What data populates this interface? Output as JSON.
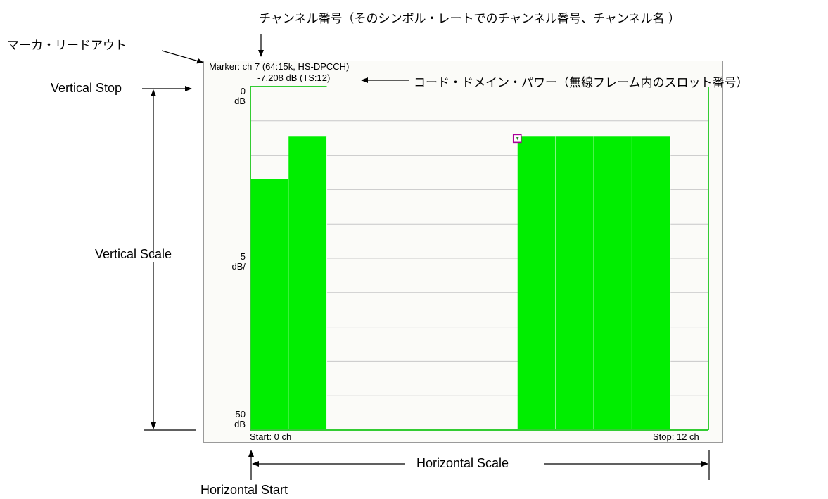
{
  "callouts": {
    "channel_number": "チャンネル番号（そのシンボル・レートでのチャンネル番号、チャンネル名 ）",
    "marker_readout": "マーカ・リードアウト",
    "code_domain_power": "コード・ドメイン・パワー（無線フレーム内のスロット番号）",
    "vertical_stop": "Vertical Stop",
    "vertical_scale": "Vertical Scale",
    "horizontal_scale": "Horizontal Scale",
    "horizontal_start": "Horizontal Start"
  },
  "display": {
    "marker_line1": "Marker: ch 7 (64:15k, HS-DPCCH)",
    "marker_line2": "-7.208 dB (TS:12)",
    "y_top_value": "0",
    "y_top_unit": "dB",
    "y_scale_value": "5",
    "y_scale_unit": "dB/",
    "y_bottom_value": "-50",
    "y_bottom_unit": "dB",
    "start_label": "Start: 0 ch",
    "stop_label": "Stop: 12 ch"
  },
  "colors": {
    "bar": "#00ee00",
    "trace": "#33cc33",
    "grid": "#c8c8c8",
    "marker": "#aa0099",
    "plot_bg": "#fbfbf8"
  },
  "chart_data": {
    "type": "bar",
    "xlim": [
      0,
      12
    ],
    "ylim": [
      -50,
      0
    ],
    "y_unit": "dB",
    "y_scale_per_div": 5,
    "grid": true,
    "bars": [
      {
        "x0": 0,
        "x1": 1,
        "value": -13.5
      },
      {
        "x0": 1,
        "x1": 2,
        "value": -7.2
      },
      {
        "x0": 7,
        "x1": 8,
        "value": -7.2
      },
      {
        "x0": 8,
        "x1": 9,
        "value": -7.2
      },
      {
        "x0": 9,
        "x1": 10,
        "value": -7.2
      },
      {
        "x0": 10,
        "x1": 11,
        "value": -7.2
      }
    ],
    "marker": {
      "channel": 7,
      "value": -7.208
    }
  }
}
